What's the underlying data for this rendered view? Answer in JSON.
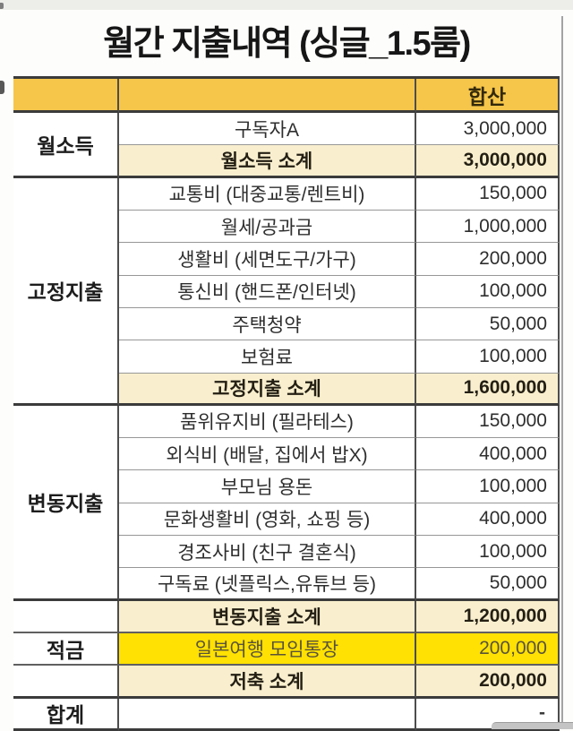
{
  "title": "월간 지출내역 (싱글_1.5룸)",
  "colors": {
    "header_bg": "#f6c64b",
    "subtotal_bg": "#f9efce",
    "highlight_bg": "#ffe103",
    "highlight_text": "#59533a",
    "border_dark": "#3b3b3b",
    "border_thin": "#979797"
  },
  "table": {
    "rows": [
      {
        "style": "header",
        "category": {
          "label": "",
          "span": 1
        },
        "label": "",
        "value": "합산",
        "line": "d"
      },
      {
        "style": "normal",
        "category": {
          "label": "월소득",
          "span": 2
        },
        "label": "구독자A",
        "value": "3,000,000",
        "line": "t"
      },
      {
        "style": "subtotal",
        "label": "월소득 소계",
        "value": "3,000,000",
        "line": "d"
      },
      {
        "style": "normal",
        "category": {
          "label": "고정지출",
          "span": 7
        },
        "label": "교통비 (대중교통/렌트비)",
        "value": "150,000",
        "line": "t"
      },
      {
        "style": "normal",
        "label": "월세/공과금",
        "value": "1,000,000",
        "line": "t"
      },
      {
        "style": "normal",
        "label": "생활비 (세면도구/가구)",
        "value": "200,000",
        "line": "t"
      },
      {
        "style": "normal",
        "label": "통신비 (핸드폰/인터넷)",
        "value": "100,000",
        "line": "t"
      },
      {
        "style": "normal",
        "label": "주택청약",
        "value": "50,000",
        "line": "t"
      },
      {
        "style": "normal",
        "label": "보험료",
        "value": "100,000",
        "line": "t"
      },
      {
        "style": "subtotal",
        "label": "고정지출 소계",
        "value": "1,600,000",
        "line": "d"
      },
      {
        "style": "normal",
        "category": {
          "label": "변동지출",
          "span": 6
        },
        "label": "품위유지비 (필라테스)",
        "value": "150,000",
        "line": "t"
      },
      {
        "style": "normal",
        "label": "외식비 (배달, 집에서 밥X)",
        "value": "400,000",
        "line": "t"
      },
      {
        "style": "normal",
        "label": "부모님 용돈",
        "value": "100,000",
        "line": "t"
      },
      {
        "style": "normal",
        "label": "문화생활비 (영화, 쇼핑 등)",
        "value": "400,000",
        "line": "t"
      },
      {
        "style": "normal",
        "label": "경조사비 (친구 결혼식)",
        "value": "100,000",
        "line": "t"
      },
      {
        "style": "normal",
        "label": "구독료 (넷플릭스,유튜브 등)",
        "value": "50,000",
        "line": "d"
      },
      {
        "style": "subtotal",
        "category": {
          "label": "",
          "span": 1
        },
        "label": "변동지출 소계",
        "value": "1,200,000",
        "line": "m"
      },
      {
        "style": "highlight",
        "category": {
          "label": "적금",
          "span": 1
        },
        "label": "일본여행 모임통장",
        "value": "200,000",
        "line": "m"
      },
      {
        "style": "subtotal",
        "category": {
          "label": "",
          "span": 1
        },
        "label": "저축 소계",
        "value": "200,000",
        "line": "d"
      },
      {
        "style": "total",
        "category": {
          "label": "합계",
          "span": 1
        },
        "label": "",
        "value": "-",
        "line": "d"
      }
    ]
  },
  "chart_data": {
    "type": "table",
    "title": "월간 지출내역 (싱글_1.5룸)",
    "columns": [
      "",
      "",
      "합산"
    ],
    "sections": [
      {
        "category": "월소득",
        "items": [
          [
            "구독자A",
            3000000
          ]
        ],
        "subtotal_label": "월소득 소계",
        "subtotal": 3000000
      },
      {
        "category": "고정지출",
        "items": [
          [
            "교통비 (대중교통/렌트비)",
            150000
          ],
          [
            "월세/공과금",
            1000000
          ],
          [
            "생활비 (세면도구/가구)",
            200000
          ],
          [
            "통신비 (핸드폰/인터넷)",
            100000
          ],
          [
            "주택청약",
            50000
          ],
          [
            "보험료",
            100000
          ]
        ],
        "subtotal_label": "고정지출 소계",
        "subtotal": 1600000
      },
      {
        "category": "변동지출",
        "items": [
          [
            "품위유지비 (필라테스)",
            150000
          ],
          [
            "외식비 (배달, 집에서 밥X)",
            400000
          ],
          [
            "부모님 용돈",
            100000
          ],
          [
            "문화생활비 (영화, 쇼핑 등)",
            400000
          ],
          [
            "경조사비 (친구 결혼식)",
            100000
          ],
          [
            "구독료 (넷플릭스,유튜브 등)",
            50000
          ]
        ],
        "subtotal_label": "변동지출 소계",
        "subtotal": 1200000
      },
      {
        "category": "적금",
        "items": [
          [
            "일본여행 모임통장",
            200000
          ]
        ],
        "subtotal_label": "저축 소계",
        "subtotal": 200000
      }
    ],
    "total_label": "합계",
    "total": "-"
  }
}
